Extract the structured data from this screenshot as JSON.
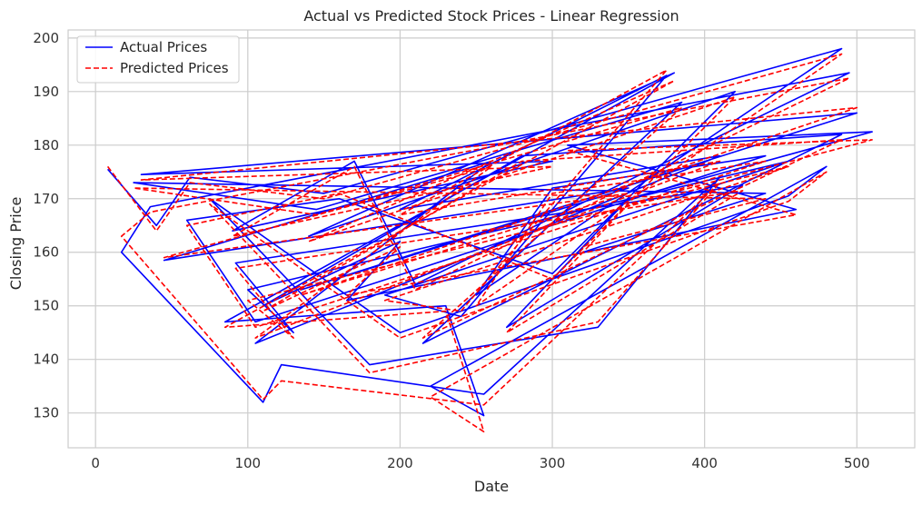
{
  "chart_data": {
    "type": "line",
    "title": "Actual vs Predicted Stock Prices - Linear Regression",
    "xlabel": "Date",
    "ylabel": "Closing Price",
    "xlim": [
      -18,
      538
    ],
    "ylim": [
      123.5,
      201.5
    ],
    "xticks": [
      0,
      100,
      200,
      300,
      400,
      500
    ],
    "yticks": [
      130,
      140,
      150,
      160,
      170,
      180,
      190,
      200
    ],
    "grid": true,
    "legend_position": "top-left",
    "colors": {
      "actual": "#0000ff",
      "predicted": "#ff0000",
      "grid": "#cccccc",
      "spine": "#cccccc"
    },
    "series": [
      {
        "name": "Actual Prices",
        "style": "solid",
        "x": [
          8,
          40,
          62,
          150,
          490,
          250,
          300,
          440,
          105,
          60,
          160,
          300,
          420,
          140,
          380,
          85,
          230,
          255,
          220,
          480,
          455,
          200,
          75,
          180,
          330,
          410,
          255,
          122,
          110,
          17,
          36,
          495,
          210,
          170,
          90,
          300,
          30,
          500,
          135,
          350,
          45,
          260,
          105,
          410,
          200,
          375,
          240,
          190,
          455,
          100,
          130,
          92,
          425,
          270,
          350,
          510,
          310,
          460,
          165,
          200,
          110,
          280,
          490,
          215,
          385,
          145,
          25,
          440,
          320
        ],
        "y": [
          175.5,
          165,
          174,
          171,
          198,
          152,
          172,
          178,
          147,
          166,
          170,
          156,
          190,
          163,
          193.5,
          147,
          150,
          129.5,
          135,
          176,
          170.5,
          145,
          170,
          139,
          146,
          174,
          133.5,
          139,
          132,
          160,
          168.5,
          193.5,
          154,
          177,
          164,
          177,
          174.5,
          186,
          153,
          172,
          158.5,
          177,
          143,
          178,
          168,
          193,
          148,
          152,
          177,
          153,
          145,
          158,
          172.5,
          146,
          170,
          182.5,
          180,
          168,
          151,
          162,
          150,
          178,
          182,
          143,
          188,
          168,
          173,
          171,
          160
        ]
      },
      {
        "name": "Predicted Prices",
        "style": "dashed",
        "x": [
          8,
          40,
          62,
          150,
          490,
          250,
          300,
          440,
          105,
          60,
          160,
          300,
          420,
          140,
          380,
          85,
          230,
          255,
          220,
          480,
          455,
          200,
          75,
          180,
          330,
          410,
          255,
          122,
          110,
          17,
          36,
          495,
          210,
          170,
          90,
          300,
          30,
          500,
          135,
          350,
          45,
          260,
          105,
          410,
          200,
          375,
          240,
          190,
          455,
          100,
          130,
          92,
          425,
          270,
          350,
          510,
          310,
          460,
          165,
          200,
          110,
          280,
          490,
          215,
          385,
          145,
          25,
          440,
          320
        ],
        "y": [
          176,
          164,
          173,
          170,
          197,
          150,
          171,
          177,
          146,
          165,
          171,
          155,
          189,
          162,
          192,
          146,
          149,
          126.5,
          133,
          175,
          169.5,
          144,
          169,
          137.5,
          147,
          173,
          131.5,
          136,
          132.5,
          163,
          167.5,
          192.5,
          153,
          176,
          163,
          176,
          173.5,
          187,
          152,
          171,
          159,
          176,
          144,
          177,
          167,
          194,
          149,
          151,
          176,
          151,
          144,
          157,
          171.5,
          145,
          169,
          181,
          179,
          167,
          152,
          161,
          149,
          177,
          181,
          144,
          187,
          167,
          172,
          170,
          161
        ]
      }
    ]
  }
}
